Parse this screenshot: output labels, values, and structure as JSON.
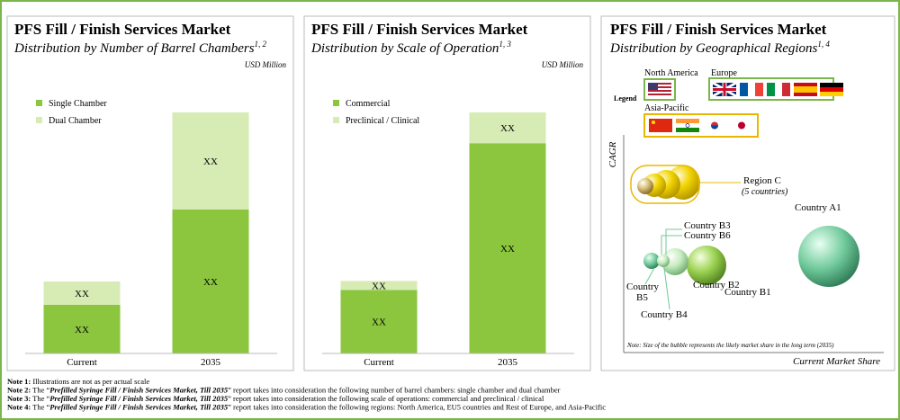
{
  "chart_data": [
    {
      "type": "bar",
      "stacked": true,
      "title": "PFS Fill / Finish Services Market",
      "subtitle": "Distribution by Number of Barrel Chambers",
      "subtitle_note": "1, 2",
      "unit_label": "USD Million",
      "categories": [
        "Current",
        "2035"
      ],
      "series": [
        {
          "name": "Single Chamber",
          "color": "#8cc63f",
          "values": [
            27,
            80
          ],
          "value_labels": [
            "XX",
            "XX"
          ]
        },
        {
          "name": "Dual Chamber",
          "color": "#d7ebb4",
          "values": [
            13,
            54
          ],
          "value_labels": [
            "XX",
            "XX"
          ]
        }
      ]
    },
    {
      "type": "bar",
      "stacked": true,
      "title": "PFS Fill / Finish Services Market",
      "subtitle": "Distribution by Scale of Operation",
      "subtitle_note": "1, 3",
      "unit_label": "USD Million",
      "categories": [
        "Current",
        "2035"
      ],
      "series": [
        {
          "name": "Commercial",
          "color": "#8cc63f",
          "values": [
            35,
            116
          ],
          "value_labels": [
            "XX",
            "XX"
          ]
        },
        {
          "name": "Preclinical / Clinical",
          "color": "#d7ebb4",
          "values": [
            5,
            17
          ],
          "value_labels": [
            "XX",
            "XX"
          ]
        }
      ]
    }
  ],
  "bubble_panel": {
    "title": "PFS Fill / Finish Services Market",
    "subtitle": "Distribution by Geographical Regions",
    "subtitle_note": "1, 4",
    "legend_title": "Legend",
    "regions": [
      "North America",
      "Europe",
      "Asia-Pacific"
    ],
    "y_label": "CAGR",
    "x_label": "Current Market Share",
    "region_c": "Region C",
    "region_c_note": "(5 countries)",
    "countries": [
      "Country A1",
      "Country B1",
      "Country B2",
      "Country B3",
      "Country B6",
      "Country B4"
    ],
    "country_b5": [
      "Country",
      "B5"
    ],
    "note": "Note: Size of the bubble represents the likely market share in the long term (2035)"
  },
  "notes": [
    {
      "label": "Note 1:",
      "text": " Illustrations are not as per actual scale"
    },
    {
      "label": "Note 2:",
      "pre": " The “",
      "report": "Prefilled Syringe Fill / Finish Services Market, Till 2035",
      "post": "” report takes into consideration the following number of barrel chambers: single chamber and dual chamber"
    },
    {
      "label": "Note 3:",
      "pre": " The “",
      "report": "Prefilled Syringe Fill / Finish Services Market, Till 2035",
      "post": "” report takes into consideration the following scale of operations: commercial and preclinical / clinical"
    },
    {
      "label": "Note 4:",
      "pre": " The “",
      "report": "Prefilled Syringe Fill / Finish Services Market, Till 2035",
      "post": "” report takes into consideration the following regions: North America, EU5 countries and Rest of Europe, and Asia-Pacific"
    }
  ]
}
